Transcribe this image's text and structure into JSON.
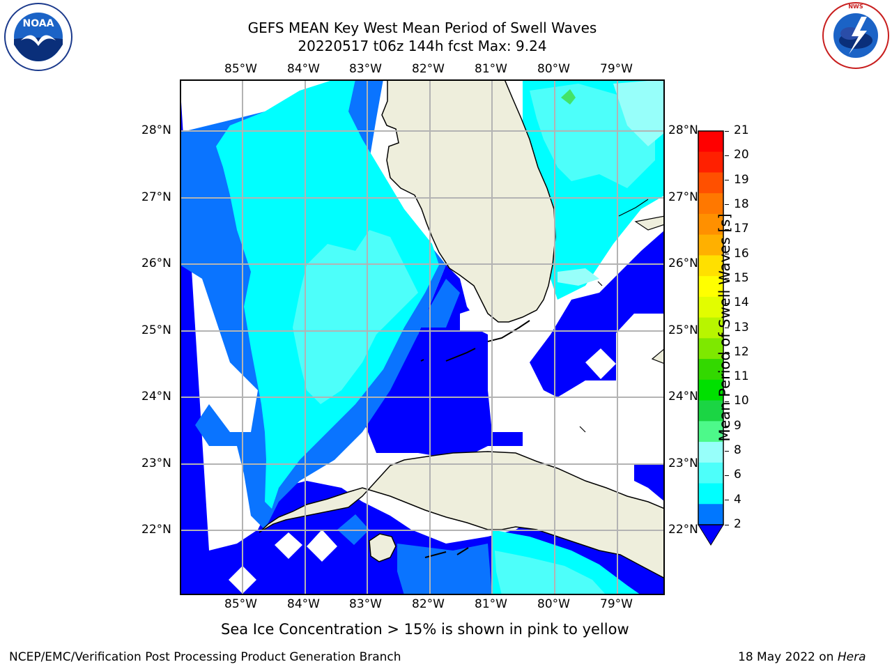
{
  "header": {
    "title_line1": "GEFS MEAN Key West Mean Period of Swell Waves",
    "title_line2": "20220517 t06z 144h fcst   Max: 9.24"
  },
  "logos": {
    "left": {
      "name": "noaa-logo",
      "text": "NOAA",
      "ring_text": "NATIONAL OCEANIC AND ATMOSPHERIC ADMINISTRATION · U.S. DEPARTMENT OF COMMERCE"
    },
    "right": {
      "name": "nws-logo",
      "ring_text": "NATIONAL WEATHER SERVICE"
    }
  },
  "map": {
    "lon_labels": [
      "85°W",
      "84°W",
      "83°W",
      "82°W",
      "81°W",
      "80°W",
      "79°W"
    ],
    "lat_labels_left": [
      "28°N",
      "27°N",
      "26°N",
      "25°N",
      "24°N",
      "23°N",
      "22°N"
    ],
    "lat_labels_right": [
      "28°N",
      "27°N",
      "26°N",
      "25°N",
      "24°N",
      "23°N",
      "22°N"
    ],
    "colors": {
      "deep_blue": "#0000ff",
      "mid_blue": "#0a74ff",
      "cyan": "#00ffff",
      "light_cyan": "#4dfffa",
      "pale_cyan": "#97fffa",
      "green": "#43e368",
      "land": "#eeeedc"
    }
  },
  "colorbar": {
    "label": "Mean Period of Swell Waves [s]",
    "ticks": [
      "21",
      "20",
      "19",
      "18",
      "17",
      "16",
      "15",
      "14",
      "13",
      "12",
      "11",
      "10",
      "9",
      "8",
      "6",
      "4",
      "2"
    ],
    "bands": [
      "#ff0000",
      "#ff2000",
      "#ff5000",
      "#ff7800",
      "#ff9000",
      "#ffb000",
      "#ffe000",
      "#ffff00",
      "#e2fd00",
      "#b8f500",
      "#7ee800",
      "#33d800",
      "#00e000",
      "#1bd544",
      "#4df98a",
      "#97fffa",
      "#4dfffa",
      "#00ffff",
      "#0077ff"
    ],
    "under_color": "#0000ff"
  },
  "footer": {
    "note": "Sea Ice Concentration > 15% is shown in pink to yellow",
    "left": "NCEP/EMC/Verification Post Processing Product Generation Branch",
    "right_date": "18 May 2022 on ",
    "right_host": "Hera"
  }
}
